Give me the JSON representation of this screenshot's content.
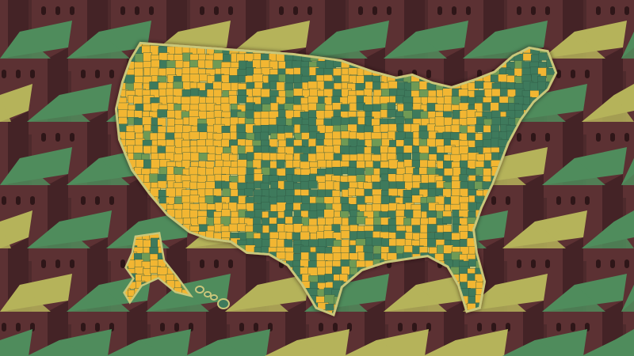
{
  "illustration": {
    "subject": "county-map-over-houses",
    "colors": {
      "background": "#4e2a2c",
      "house_wall": "#5c3133",
      "house_wall_dark": "#442326",
      "roof_green": "#4f8c5c",
      "roof_olive": "#b5b35a",
      "window": "#2e1618",
      "map_yellow": "#f2b632",
      "map_green": "#3e7a5c",
      "map_mid": "#6f9a55",
      "map_border": "#c9c77a"
    }
  }
}
